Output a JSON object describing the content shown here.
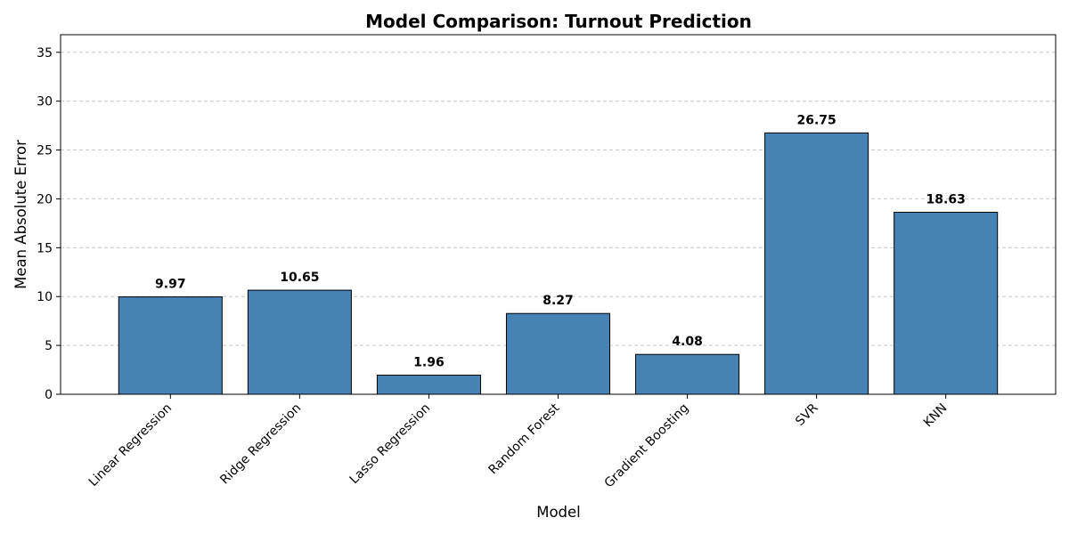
{
  "chart_data": {
    "type": "bar",
    "title": "Model Comparison: Turnout Prediction",
    "xlabel": "Model",
    "ylabel": "Mean Absolute Error",
    "categories": [
      "Linear Regression",
      "Ridge Regression",
      "Lasso Regression",
      "Random Forest",
      "Gradient Boosting",
      "SVR",
      "KNN"
    ],
    "values": [
      9.97,
      10.65,
      1.96,
      8.27,
      4.08,
      26.75,
      18.63
    ],
    "data_labels": [
      "9.97",
      "10.65",
      "1.96",
      "8.27",
      "4.08",
      "26.75",
      "18.63"
    ],
    "yticks": [
      0,
      5,
      10,
      15,
      20,
      25,
      30,
      35
    ],
    "ylim": [
      0,
      36.8
    ],
    "grid": "y-dashed",
    "legend": "none",
    "colors": {
      "bar_fill": "#4682b4",
      "bar_edge": "#000000",
      "grid": "#c8c8c8",
      "axis": "#000000",
      "text": "#000000"
    }
  }
}
